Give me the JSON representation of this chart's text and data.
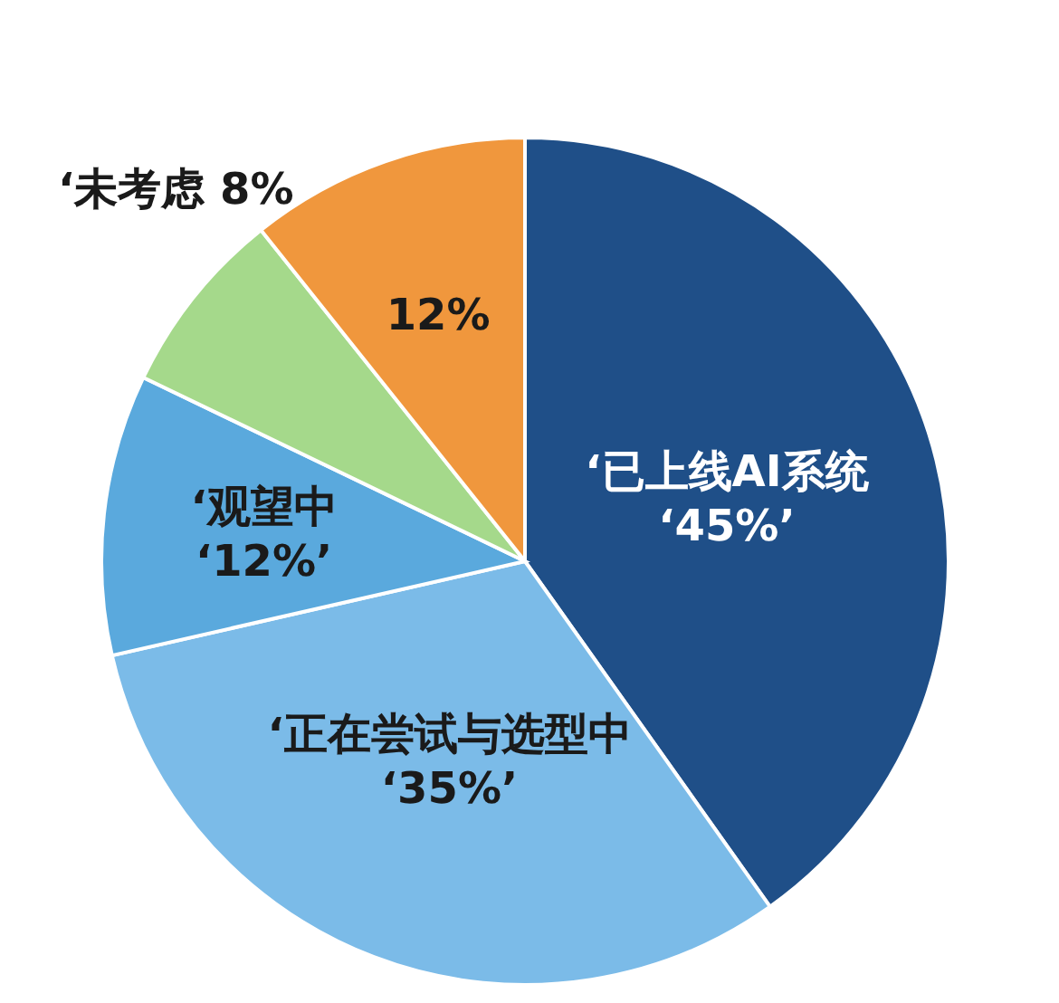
{
  "chart_data": {
    "type": "pie",
    "categories": [
      "‘已上线AI系统",
      "‘正在尝试与选型中",
      "‘观望中",
      "‘未考虑",
      null
    ],
    "values": [
      45,
      35,
      12,
      8,
      12
    ],
    "colors": [
      "#1f4f88",
      "#7bbbe8",
      "#5aa9dd",
      "#a5d98b",
      "#f0973d"
    ],
    "value_labels": [
      "‘45%’",
      "‘35%’",
      "‘12%’",
      "8%",
      "12%"
    ]
  }
}
